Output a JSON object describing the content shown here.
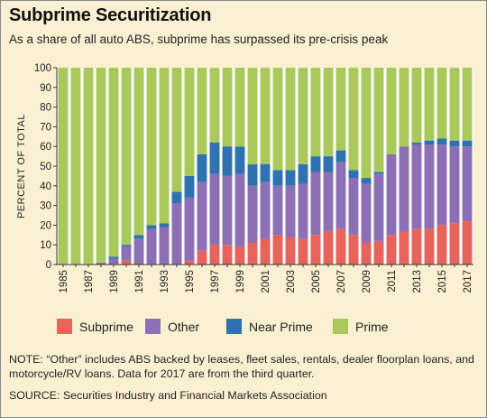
{
  "title": "Subprime Securitization",
  "subtitle": "As a share of all auto ABS, subprime has surpassed its pre-crisis peak",
  "note": {
    "label": "NOTE:",
    "text": " “Other” includes ABS backed by leases, fleet sales, rentals, dealer floorplan loans, and motorcycle/RV loans. Data for 2017 are from the third quarter."
  },
  "source": {
    "label": "SOURCE:",
    "text": " Securities Industry and Financial Markets Association"
  },
  "chart_data": {
    "type": "bar",
    "stacked": true,
    "ylabel": "PERCENT OF TOTAL",
    "xlabel": "",
    "ylim": [
      0,
      100
    ],
    "yticks": [
      0,
      10,
      20,
      30,
      40,
      50,
      60,
      70,
      80,
      90,
      100
    ],
    "grid": false,
    "legend_position": "bottom",
    "categories": [
      "1985",
      "1986",
      "1987",
      "1988",
      "1989",
      "1990",
      "1991",
      "1992",
      "1993",
      "1994",
      "1995",
      "1996",
      "1997",
      "1998",
      "1999",
      "2000",
      "2001",
      "2002",
      "2003",
      "2004",
      "2005",
      "2006",
      "2007",
      "2008",
      "2009",
      "2010",
      "2011",
      "2012",
      "2013",
      "2014",
      "2015",
      "2016",
      "2017"
    ],
    "x_tick_labels": [
      "1985",
      "1987",
      "1989",
      "1991",
      "1993",
      "1995",
      "1997",
      "1999",
      "2001",
      "2003",
      "2005",
      "2007",
      "2009",
      "2011",
      "2013",
      "2015",
      "2017"
    ],
    "series": [
      {
        "name": "Subprime",
        "color": "#e8635a",
        "values": [
          0,
          0,
          0,
          0,
          0,
          2,
          0,
          0,
          0,
          0,
          2,
          7,
          10,
          10,
          9,
          11,
          13,
          15,
          14,
          13,
          15,
          17,
          18,
          15,
          11,
          12,
          15,
          17,
          18,
          18,
          20,
          21,
          22
        ]
      },
      {
        "name": "Other",
        "color": "#8d6fb5",
        "values": [
          0,
          0,
          0,
          1,
          3,
          7,
          13,
          18,
          19,
          31,
          32,
          35,
          36,
          35,
          37,
          29,
          29,
          25,
          26,
          28,
          32,
          30,
          34,
          29,
          30,
          34,
          41,
          43,
          43,
          43,
          41,
          39,
          38
        ]
      },
      {
        "name": "Near Prime",
        "color": "#2e72b0",
        "values": [
          0,
          0,
          0,
          0,
          1,
          1,
          2,
          2,
          2,
          6,
          11,
          14,
          16,
          15,
          14,
          11,
          9,
          8,
          8,
          10,
          8,
          8,
          6,
          4,
          3,
          1,
          0,
          0,
          1,
          2,
          3,
          3,
          3
        ]
      },
      {
        "name": "Prime",
        "color": "#a9c95a",
        "values": [
          100,
          100,
          100,
          99,
          96,
          90,
          85,
          80,
          79,
          63,
          55,
          44,
          38,
          40,
          40,
          49,
          49,
          52,
          52,
          49,
          45,
          45,
          42,
          52,
          56,
          53,
          44,
          40,
          38,
          37,
          36,
          37,
          37
        ]
      }
    ]
  }
}
